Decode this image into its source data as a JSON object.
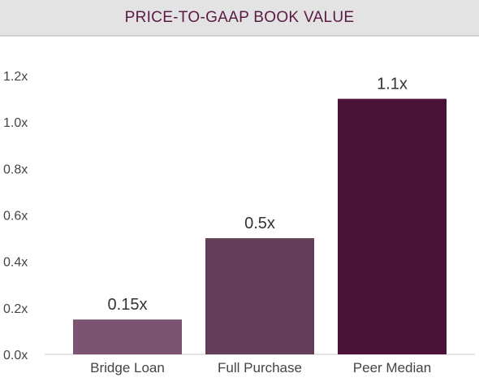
{
  "header": {
    "title": "PRICE-TO-GAAP BOOK VALUE"
  },
  "chart_data": {
    "type": "bar",
    "title": "PRICE-TO-GAAP BOOK VALUE",
    "categories": [
      "Bridge Loan",
      "Full Purchase",
      "Peer Median"
    ],
    "values": [
      0.15,
      0.5,
      1.1
    ],
    "data_labels": [
      "0.15x",
      "0.5x",
      "1.1x"
    ],
    "colors": [
      "#7a5470",
      "#633e58",
      "#4a1239"
    ],
    "ylim": [
      0,
      1.2
    ],
    "yticks": [
      0,
      0.2,
      0.4,
      0.6,
      0.8,
      1.0,
      1.2
    ],
    "ytick_labels": [
      "0.0x",
      "0.2x",
      "0.4x",
      "0.6x",
      "0.8x",
      "1.0x",
      "1.2x"
    ],
    "grid": false,
    "legend": "none"
  }
}
